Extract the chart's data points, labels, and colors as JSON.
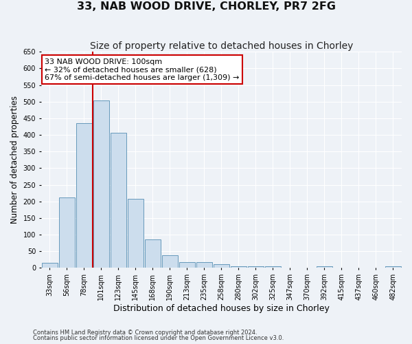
{
  "title": "33, NAB WOOD DRIVE, CHORLEY, PR7 2FG",
  "subtitle": "Size of property relative to detached houses in Chorley",
  "xlabel": "Distribution of detached houses by size in Chorley",
  "ylabel": "Number of detached properties",
  "categories": [
    "33sqm",
    "56sqm",
    "78sqm",
    "101sqm",
    "123sqm",
    "145sqm",
    "168sqm",
    "190sqm",
    "213sqm",
    "235sqm",
    "258sqm",
    "280sqm",
    "302sqm",
    "325sqm",
    "347sqm",
    "370sqm",
    "392sqm",
    "415sqm",
    "437sqm",
    "460sqm",
    "482sqm"
  ],
  "values": [
    15,
    212,
    435,
    503,
    407,
    207,
    85,
    38,
    17,
    17,
    11,
    6,
    4,
    4,
    0,
    0,
    6,
    0,
    0,
    0,
    5
  ],
  "bar_color": "#ccdded",
  "bar_edge_color": "#6699bb",
  "vline_color": "#cc0000",
  "annotation_text": "33 NAB WOOD DRIVE: 100sqm\n← 32% of detached houses are smaller (628)\n67% of semi-detached houses are larger (1,309) →",
  "annotation_box_color": "#ffffff",
  "annotation_border_color": "#cc0000",
  "ylim": [
    0,
    650
  ],
  "yticks": [
    0,
    50,
    100,
    150,
    200,
    250,
    300,
    350,
    400,
    450,
    500,
    550,
    600,
    650
  ],
  "footnote1": "Contains HM Land Registry data © Crown copyright and database right 2024.",
  "footnote2": "Contains public sector information licensed under the Open Government Licence v3.0.",
  "background_color": "#eef2f7",
  "plot_bg_color": "#eef2f7",
  "title_fontsize": 11.5,
  "subtitle_fontsize": 10,
  "xlabel_fontsize": 9,
  "ylabel_fontsize": 8.5,
  "tick_fontsize": 7,
  "annotation_fontsize": 8,
  "footnote_fontsize": 6
}
